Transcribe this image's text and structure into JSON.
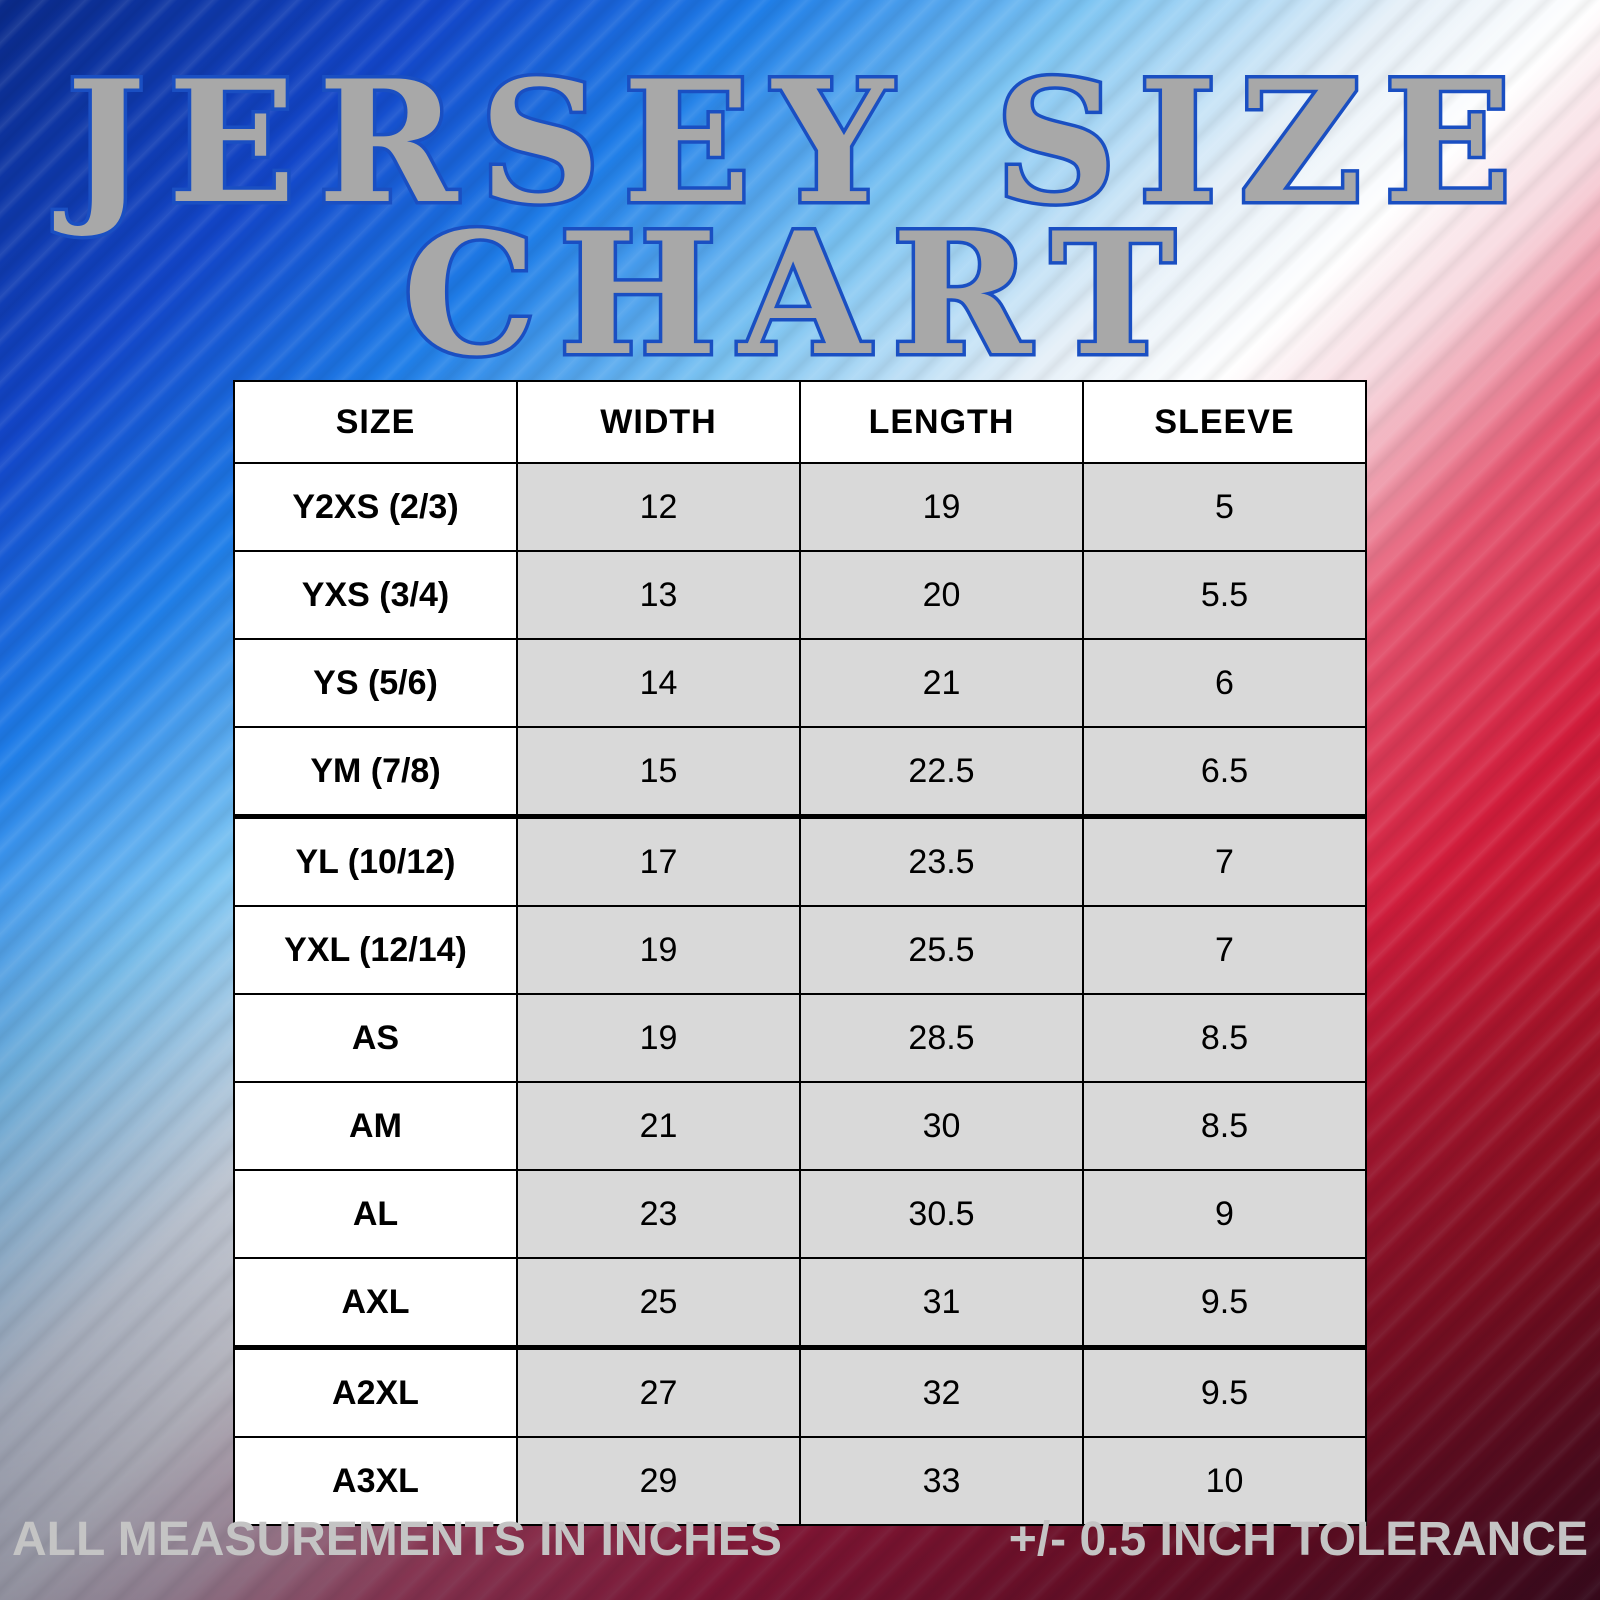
{
  "title": {
    "line1": "JERSEY SIZE",
    "line2": "CHART"
  },
  "colors": {
    "title_fill": "#a8a8a8",
    "title_outline": "#1a4fc2",
    "cell_shade": "#d9d9d9",
    "footer_text": "#c4c4c4"
  },
  "table": {
    "headers": [
      "SIZE",
      "WIDTH",
      "LENGTH",
      "SLEEVE"
    ],
    "rows": [
      {
        "size": "Y2XS (2/3)",
        "width": "12",
        "length": "19",
        "sleeve": "5"
      },
      {
        "size": "YXS (3/4)",
        "width": "13",
        "length": "20",
        "sleeve": "5.5"
      },
      {
        "size": "YS (5/6)",
        "width": "14",
        "length": "21",
        "sleeve": "6"
      },
      {
        "size": "YM (7/8)",
        "width": "15",
        "length": "22.5",
        "sleeve": "6.5"
      },
      {
        "size": "YL (10/12)",
        "width": "17",
        "length": "23.5",
        "sleeve": "7"
      },
      {
        "size": "YXL (12/14)",
        "width": "19",
        "length": "25.5",
        "sleeve": "7"
      },
      {
        "size": "AS",
        "width": "19",
        "length": "28.5",
        "sleeve": "8.5"
      },
      {
        "size": "AM",
        "width": "21",
        "length": "30",
        "sleeve": "8.5"
      },
      {
        "size": "AL",
        "width": "23",
        "length": "30.5",
        "sleeve": "9"
      },
      {
        "size": "AXL",
        "width": "25",
        "length": "31",
        "sleeve": "9.5"
      },
      {
        "size": "A2XL",
        "width": "27",
        "length": "32",
        "sleeve": "9.5"
      },
      {
        "size": "A3XL",
        "width": "29",
        "length": "33",
        "sleeve": "10"
      }
    ]
  },
  "footer": {
    "left": "ALL MEASUREMENTS IN INCHES",
    "right": "+/- 0.5  INCH TOLERANCE"
  }
}
